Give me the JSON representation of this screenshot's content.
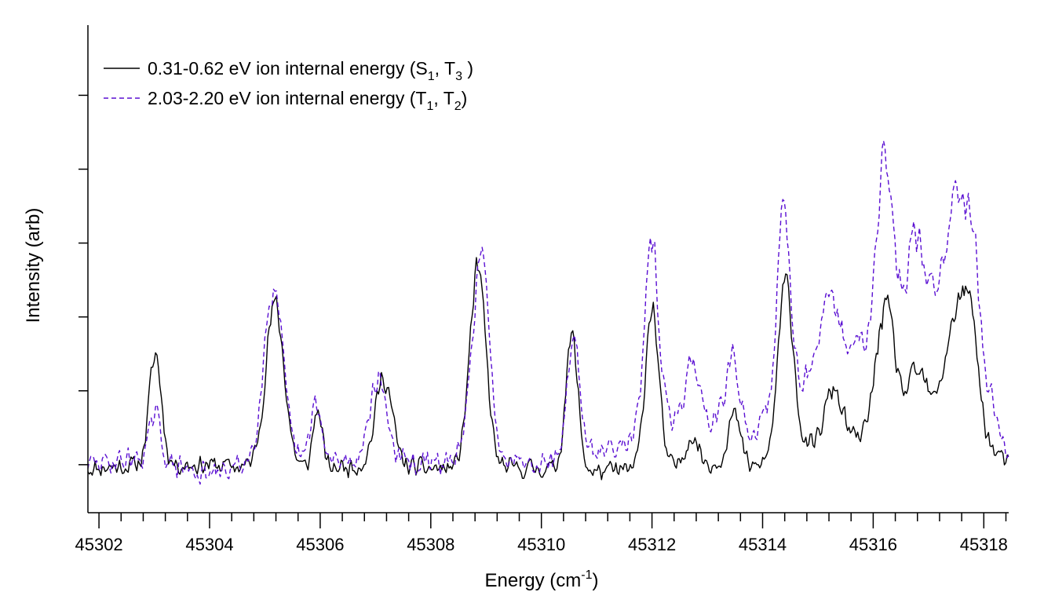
{
  "chart_data": {
    "type": "line",
    "title": "",
    "xlabel": {
      "main": "Energy (cm",
      "sup": "-1",
      "tail": ")"
    },
    "ylabel": "Intensity (arb)",
    "xlim": [
      45301.8,
      45318.45
    ],
    "ylim": [
      -1.3,
      11.9
    ],
    "x_ticks_major": [
      "45302",
      "45304",
      "45306",
      "45308",
      "45310",
      "45312",
      "45314",
      "45316",
      "45318"
    ],
    "x_tick_minor_step": 0.4,
    "y_ticks": [
      0,
      2,
      4,
      6,
      8,
      10
    ],
    "y_tick_labels_shown": false,
    "grid": false,
    "legend_position": "top-left",
    "series": [
      {
        "name": "0.31-0.62 eV ion internal energy (S1, T3 )",
        "legend": {
          "main": "0.31-0.62 eV ion internal energy (S",
          "s1": "1",
          "mid": ", T",
          "s2": "3",
          "tail": " )"
        },
        "color": "#000000",
        "dash": "solid",
        "baseline": [
          [
            45301.8,
            -0.1
          ],
          [
            45302.8,
            0.0
          ],
          [
            45304.0,
            0.0
          ],
          [
            45305.0,
            -0.1
          ],
          [
            45306.0,
            -0.1
          ],
          [
            45307.0,
            0.0
          ],
          [
            45308.0,
            -0.1
          ],
          [
            45309.0,
            -0.1
          ],
          [
            45310.0,
            -0.1
          ],
          [
            45311.0,
            -0.2
          ],
          [
            45312.0,
            -0.1
          ],
          [
            45313.0,
            0.0
          ],
          [
            45313.8,
            -0.1
          ],
          [
            45314.8,
            0.4
          ],
          [
            45315.5,
            0.6
          ],
          [
            45316.0,
            0.7
          ],
          [
            45316.8,
            1.0
          ],
          [
            45317.5,
            1.2
          ],
          [
            45318.45,
            0.0
          ]
        ],
        "peaks": [
          [
            45303.02,
            3.0,
            0.11
          ],
          [
            45305.18,
            4.4,
            0.17
          ],
          [
            45305.95,
            1.6,
            0.08
          ],
          [
            45307.15,
            2.4,
            0.15
          ],
          [
            45308.85,
            5.3,
            0.15
          ],
          [
            45310.55,
            3.6,
            0.11
          ],
          [
            45312.0,
            4.4,
            0.12
          ],
          [
            45312.72,
            0.8,
            0.12
          ],
          [
            45313.48,
            1.4,
            0.12
          ],
          [
            45314.42,
            4.7,
            0.14
          ],
          [
            45315.28,
            1.5,
            0.16
          ],
          [
            45316.22,
            3.5,
            0.17
          ],
          [
            45316.8,
            1.5,
            0.18
          ],
          [
            45317.45,
            2.4,
            0.18
          ],
          [
            45317.75,
            3.0,
            0.15
          ]
        ],
        "noise": 0.32,
        "seed": 11
      },
      {
        "name": "2.03-2.20 eV ion internal energy (T1, T2)",
        "legend": {
          "main": "2.03-2.20 eV ion internal energy (T",
          "s1": "1",
          "mid": ", T",
          "s2": "2",
          "tail": ")"
        },
        "color": "#5a0fd2",
        "dash": "6,4",
        "baseline": [
          [
            45301.8,
            0.0
          ],
          [
            45302.8,
            0.2
          ],
          [
            45304.0,
            -0.3
          ],
          [
            45305.0,
            0.2
          ],
          [
            45306.0,
            0.1
          ],
          [
            45307.0,
            0.1
          ],
          [
            45308.0,
            0.0
          ],
          [
            45309.0,
            0.3
          ],
          [
            45310.0,
            0.1
          ],
          [
            45311.0,
            0.3
          ],
          [
            45312.0,
            1.1
          ],
          [
            45313.0,
            1.2
          ],
          [
            45313.8,
            0.8
          ],
          [
            45314.8,
            2.4
          ],
          [
            45315.5,
            3.0
          ],
          [
            45316.0,
            3.5
          ],
          [
            45316.8,
            4.6
          ],
          [
            45317.5,
            5.2
          ],
          [
            45318.45,
            0.2
          ]
        ],
        "peaks": [
          [
            45303.02,
            1.2,
            0.1
          ],
          [
            45305.15,
            4.6,
            0.17
          ],
          [
            45305.92,
            1.6,
            0.09
          ],
          [
            45307.05,
            2.2,
            0.16
          ],
          [
            45308.9,
            5.4,
            0.15
          ],
          [
            45310.58,
            3.3,
            0.11
          ],
          [
            45312.0,
            4.9,
            0.12
          ],
          [
            45312.72,
            1.7,
            0.12
          ],
          [
            45313.45,
            1.9,
            0.12
          ],
          [
            45314.38,
            5.2,
            0.12
          ],
          [
            45315.22,
            1.6,
            0.16
          ],
          [
            45316.2,
            4.6,
            0.14
          ],
          [
            45316.75,
            1.6,
            0.12
          ],
          [
            45317.55,
            2.6,
            0.16
          ],
          [
            45317.8,
            2.4,
            0.1
          ]
        ],
        "noise": 0.38,
        "seed": 29
      }
    ]
  }
}
